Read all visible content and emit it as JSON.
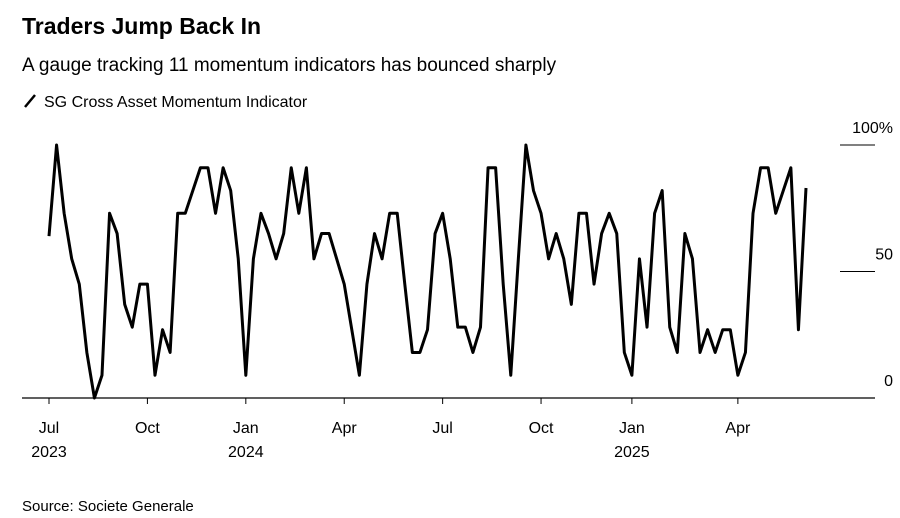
{
  "chart_data": {
    "type": "line",
    "title": "Traders Jump Back In",
    "subtitle": "A gauge tracking 11 momentum indicators has bounced sharply",
    "source": "Source: Societe Generale",
    "ylim": [
      0,
      100
    ],
    "yticks": [
      0,
      50,
      {
        "value": 100,
        "label": "100%"
      }
    ],
    "categories": [
      "Jul 2023",
      null,
      null,
      null,
      null,
      null,
      null,
      null,
      null,
      null,
      null,
      null,
      null,
      "Oct",
      null,
      null,
      null,
      null,
      null,
      null,
      null,
      null,
      null,
      null,
      null,
      null,
      "Jan 2024",
      null,
      null,
      null,
      null,
      null,
      null,
      null,
      null,
      null,
      null,
      null,
      null,
      "Apr",
      null,
      null,
      null,
      null,
      null,
      null,
      null,
      null,
      null,
      null,
      null,
      null,
      "Jul",
      null,
      null,
      null,
      null,
      null,
      null,
      null,
      null,
      null,
      null,
      null,
      null,
      "Oct",
      null,
      null,
      null,
      null,
      null,
      null,
      null,
      null,
      null,
      null,
      null,
      "Jan 2025",
      null,
      null,
      null,
      null,
      null,
      null,
      null,
      null,
      null,
      null,
      null,
      null,
      null,
      "Apr",
      null,
      null,
      null,
      null,
      null,
      null,
      null,
      null,
      null
    ],
    "series": [
      {
        "name": "SG Cross Asset Momentum Indicator",
        "color": "#000000",
        "values": [
          64,
          100,
          73,
          55,
          45,
          18,
          0,
          9,
          73,
          65,
          37,
          28,
          45,
          45,
          9,
          27,
          18,
          73,
          73,
          82,
          91,
          91,
          73,
          91,
          82,
          55,
          9,
          55,
          73,
          65,
          55,
          65,
          91,
          73,
          91,
          55,
          65,
          65,
          55,
          45,
          27,
          9,
          45,
          65,
          55,
          73,
          73,
          45,
          18,
          18,
          27,
          65,
          73,
          55,
          28,
          28,
          18,
          28,
          91,
          91,
          45,
          9,
          55,
          100,
          82,
          73,
          55,
          65,
          55,
          37,
          73,
          73,
          45,
          65,
          73,
          65,
          18,
          9,
          55,
          28,
          73,
          82,
          28,
          18,
          65,
          55,
          18,
          27,
          18,
          27,
          27,
          9,
          18,
          73,
          91,
          91,
          73,
          82,
          91,
          27,
          83
        ]
      }
    ]
  }
}
